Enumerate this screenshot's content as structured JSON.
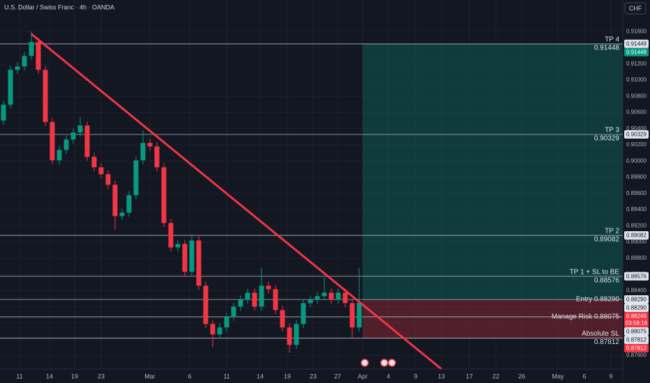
{
  "chart_data": {
    "type": "candlestick",
    "title": "U.S. Dollar / Swiss Franc · 4h · OANDA",
    "currency_button": "CHF",
    "up_color": "#089981",
    "down_color": "#f23645",
    "open": [
      0.905,
      0.90697,
      0.91127,
      0.9117,
      0.91299,
      0.91471,
      0.91127,
      0.90482,
      0.90009,
      0.90138,
      0.90267,
      0.90353,
      0.90439,
      0.90052,
      0.89923,
      0.89837,
      0.89708,
      0.8932,
      0.89363,
      0.89578,
      0.90009,
      0.90224,
      0.90181,
      0.89923,
      0.89234,
      0.88933,
      0.88976,
      0.88632,
      0.89019,
      0.8846,
      0.87987,
      0.87858,
      0.87944,
      0.88073,
      0.88202,
      0.88288,
      0.88374,
      0.88202,
      0.8846,
      0.88417,
      0.88159,
      0.87944,
      0.87729,
      0.87987,
      0.88245,
      0.88288,
      0.88331,
      0.88374,
      0.88288,
      0.88374,
      0.88245,
      0.87944
    ],
    "high": [
      0.90747,
      0.91177,
      0.9122,
      0.91349,
      0.916,
      0.91521,
      0.91177,
      0.90532,
      0.90188,
      0.90317,
      0.90403,
      0.9054,
      0.90489,
      0.90102,
      0.89973,
      0.89887,
      0.89758,
      0.89413,
      0.89628,
      0.90059,
      0.9038,
      0.90274,
      0.90231,
      0.89973,
      0.89284,
      0.89026,
      0.89026,
      0.891,
      0.89069,
      0.8851,
      0.88037,
      0.87994,
      0.88123,
      0.88252,
      0.88338,
      0.88424,
      0.88424,
      0.8868,
      0.8851,
      0.88467,
      0.88209,
      0.87994,
      0.88037,
      0.88295,
      0.88338,
      0.88381,
      0.8856,
      0.88424,
      0.88424,
      0.88424,
      0.88295,
      0.8868
    ],
    "low": [
      0.9045,
      0.90647,
      0.91077,
      0.9112,
      0.91249,
      0.91077,
      0.90432,
      0.89959,
      0.89959,
      0.90088,
      0.90217,
      0.90303,
      0.90002,
      0.89873,
      0.89787,
      0.89658,
      0.8915,
      0.8927,
      0.89313,
      0.89528,
      0.89959,
      0.90131,
      0.89873,
      0.89184,
      0.88883,
      0.88883,
      0.88582,
      0.88582,
      0.8841,
      0.87937,
      0.877,
      0.87808,
      0.87894,
      0.88023,
      0.88152,
      0.88238,
      0.88152,
      0.88152,
      0.88367,
      0.88109,
      0.87894,
      0.8763,
      0.87679,
      0.87937,
      0.88195,
      0.88238,
      0.88281,
      0.88238,
      0.88238,
      0.88195,
      0.8781,
      0.87894
    ],
    "close": [
      0.90697,
      0.91127,
      0.9117,
      0.91299,
      0.91471,
      0.91127,
      0.90482,
      0.90009,
      0.90138,
      0.90267,
      0.90353,
      0.90439,
      0.90052,
      0.89923,
      0.89837,
      0.89708,
      0.8932,
      0.89363,
      0.89578,
      0.90009,
      0.90224,
      0.90181,
      0.89923,
      0.89234,
      0.88933,
      0.88976,
      0.88632,
      0.89019,
      0.8846,
      0.87987,
      0.87858,
      0.87944,
      0.88073,
      0.88202,
      0.88288,
      0.88374,
      0.88202,
      0.8846,
      0.88417,
      0.88159,
      0.87944,
      0.87729,
      0.87987,
      0.88245,
      0.88288,
      0.88331,
      0.88374,
      0.88288,
      0.88374,
      0.88245,
      0.87944,
      0.88249
    ],
    "xlim": [
      -0.5,
      88.8
    ],
    "ylim": [
      0.8743,
      0.9199
    ],
    "xticks": [
      {
        "value": 2.3,
        "label": "11"
      },
      {
        "value": 6.6,
        "label": "14"
      },
      {
        "value": 10.2,
        "label": "19"
      },
      {
        "value": 14,
        "label": "23"
      },
      {
        "value": 21,
        "label": "Mar"
      },
      {
        "value": 26.7,
        "label": "6"
      },
      {
        "value": 32,
        "label": "11"
      },
      {
        "value": 36.8,
        "label": "14"
      },
      {
        "value": 40.7,
        "label": "19"
      },
      {
        "value": 44.4,
        "label": "23"
      },
      {
        "value": 47.9,
        "label": "27"
      },
      {
        "value": 51.5,
        "label": "Apr"
      },
      {
        "value": 55.2,
        "label": "4"
      },
      {
        "value": 59.1,
        "label": "9"
      },
      {
        "value": 62.8,
        "label": "13"
      },
      {
        "value": 66.8,
        "label": "17"
      },
      {
        "value": 70.6,
        "label": "22"
      },
      {
        "value": 74.3,
        "label": "26"
      },
      {
        "value": 79.5,
        "label": "May"
      },
      {
        "value": 83.3,
        "label": "6"
      },
      {
        "value": 87.1,
        "label": "9"
      }
    ],
    "yticks": [
      {
        "value": 0.876,
        "label": "0.87600"
      },
      {
        "value": 0.878,
        "label": "0.87800"
      },
      {
        "value": 0.88,
        "label": "0.88000"
      },
      {
        "value": 0.882,
        "label": "0.88200"
      },
      {
        "value": 0.884,
        "label": "0.88400"
      },
      {
        "value": 0.886,
        "label": "0.88600"
      },
      {
        "value": 0.888,
        "label": "0.88800"
      },
      {
        "value": 0.89,
        "label": "0.89000"
      },
      {
        "value": 0.892,
        "label": "0.89200"
      },
      {
        "value": 0.894,
        "label": "0.89400"
      },
      {
        "value": 0.896,
        "label": "0.89600"
      },
      {
        "value": 0.898,
        "label": "0.89800"
      },
      {
        "value": 0.9,
        "label": "0.90000"
      },
      {
        "value": 0.902,
        "label": "0.90200"
      },
      {
        "value": 0.904,
        "label": "0.90400"
      },
      {
        "value": 0.906,
        "label": "0.90600"
      },
      {
        "value": 0.908,
        "label": "0.90800"
      },
      {
        "value": 0.91,
        "label": "0.91000"
      },
      {
        "value": 0.912,
        "label": "0.91200"
      },
      {
        "value": 0.914,
        "label": "0.91400"
      },
      {
        "value": 0.916,
        "label": "0.91600"
      }
    ],
    "grid": true,
    "trendline": {
      "x": [
        4,
        62.8
      ],
      "y": [
        0.9157,
        0.8743
      ],
      "color": "#f23645"
    },
    "position": {
      "x_start": 51.5,
      "x_end": 88.8,
      "entry": 0.8829,
      "target": 0.91448,
      "stop": 0.87812,
      "profit_color": "#089981",
      "loss_color": "#f23645"
    },
    "levels": [
      {
        "name": "TP 4",
        "value": 0.91448,
        "layout": "stacked"
      },
      {
        "name": "TP 3",
        "value": 0.90329,
        "layout": "stacked"
      },
      {
        "name": "TP 2",
        "value": 0.89082,
        "layout": "stacked"
      },
      {
        "name": "TP 1 + SL to BE",
        "value": 0.88576,
        "layout": "stacked"
      },
      {
        "name": "Entry 0.88290",
        "value": 0.8829,
        "layout": "inline"
      },
      {
        "name": "Manage Risk 0.88075",
        "value": 0.88075,
        "layout": "inline"
      },
      {
        "name": "Absolute SL",
        "value": 0.87812,
        "layout": "stacked"
      }
    ],
    "tags": [
      {
        "value": 0.91449,
        "label": "0.91449",
        "color": "#e0e3eb"
      },
      {
        "value": 0.91448,
        "label": "0.91448",
        "color": "#089981"
      },
      {
        "value": 0.90329,
        "label": "0.90329",
        "color": "#e0e3eb"
      },
      {
        "value": 0.89082,
        "label": "0.89082",
        "color": "#e0e3eb"
      },
      {
        "value": 0.88576,
        "label": "0.88576",
        "color": "#e0e3eb"
      },
      {
        "value": 0.8829,
        "label": "0.88290",
        "color": "#e0e3eb"
      },
      {
        "value": 0.8829,
        "label": "0.88290",
        "color": "#e0e3eb"
      },
      {
        "value": 0.88249,
        "label": "0.88249",
        "color": "#f23645",
        "countdown": "03:58:16"
      },
      {
        "value": 0.88075,
        "label": "0.88075",
        "color": "#e0e3eb"
      },
      {
        "value": 0.87812,
        "label": "0.87812",
        "color": "#e0e3eb"
      },
      {
        "value": 0.87812,
        "label": "0.87812",
        "color": "#f23645"
      }
    ]
  }
}
